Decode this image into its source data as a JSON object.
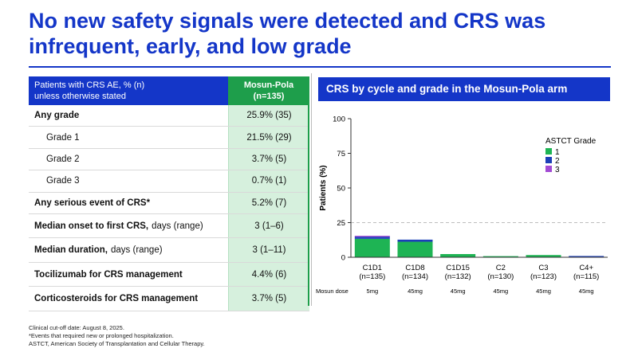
{
  "title": "No new safety signals were detected and CRS was infrequent, early, and low grade",
  "table": {
    "header_left": "Patients with CRS AE, % (n)\nunless otherwise stated",
    "header_right": "Mosun-Pola\n(n=135)",
    "rows": [
      {
        "label": "Any grade",
        "suffix": "",
        "value": "25.9% (35)",
        "style": "bold"
      },
      {
        "label": "Grade 1",
        "suffix": "",
        "value": "21.5% (29)",
        "style": "indent"
      },
      {
        "label": "Grade 2",
        "suffix": "",
        "value": "3.7% (5)",
        "style": "indent"
      },
      {
        "label": "Grade 3",
        "suffix": "",
        "value": "0.7% (1)",
        "style": "indent"
      },
      {
        "label": "Any serious event of CRS*",
        "suffix": "",
        "value": "5.2% (7)",
        "style": "bold"
      },
      {
        "label": "Median onset to first CRS,",
        "suffix": "days (range)",
        "value": "3 (1–6)",
        "style": "bold"
      },
      {
        "label": "Median duration,",
        "suffix": "days (range)",
        "value": "3 (1–11)",
        "style": "bold"
      },
      {
        "label": "Tocilizumab for CRS management",
        "suffix": "",
        "value": "4.4% (6)",
        "style": "bold"
      },
      {
        "label": "Corticosteroids for CRS management",
        "suffix": "",
        "value": "3.7% (5)",
        "style": "bold"
      }
    ]
  },
  "chart_header": "CRS by cycle and grade in the Mosun-Pola arm",
  "chart_data": {
    "type": "bar",
    "stacked": true,
    "ylabel": "Patients (%)",
    "ylim": [
      0,
      100
    ],
    "yticks": [
      0,
      25,
      50,
      75,
      100
    ],
    "reference_line": 25,
    "categories": [
      "C1D1\n(n=135)",
      "C1D8\n(n=134)",
      "C1D15\n(n=132)",
      "C2\n(n=130)",
      "C3\n(n=123)",
      "C4+\n(n=115)"
    ],
    "dose_label": "Mosun dose",
    "doses": [
      "5mg",
      "45mg",
      "45mg",
      "45mg",
      "45mg",
      "45mg"
    ],
    "legend_title": "ASTCT Grade",
    "legend_position": "top-right",
    "series": [
      {
        "name": "1",
        "color": "#1eb454",
        "values": [
          13.3,
          11.2,
          2.3,
          0.8,
          1.6,
          0
        ]
      },
      {
        "name": "2",
        "color": "#1c3fb8",
        "values": [
          1.5,
          1.5,
          0,
          0,
          0,
          0.9
        ]
      },
      {
        "name": "3",
        "color": "#a24ad4",
        "values": [
          0.7,
          0,
          0,
          0,
          0,
          0
        ]
      }
    ]
  },
  "footnotes": [
    "Clinical cut-off date: August 8, 2025.",
    "*Events that required new or prolonged hospitalization.",
    "ASTCT, American Society of Transplantation and Cellular Therapy."
  ]
}
